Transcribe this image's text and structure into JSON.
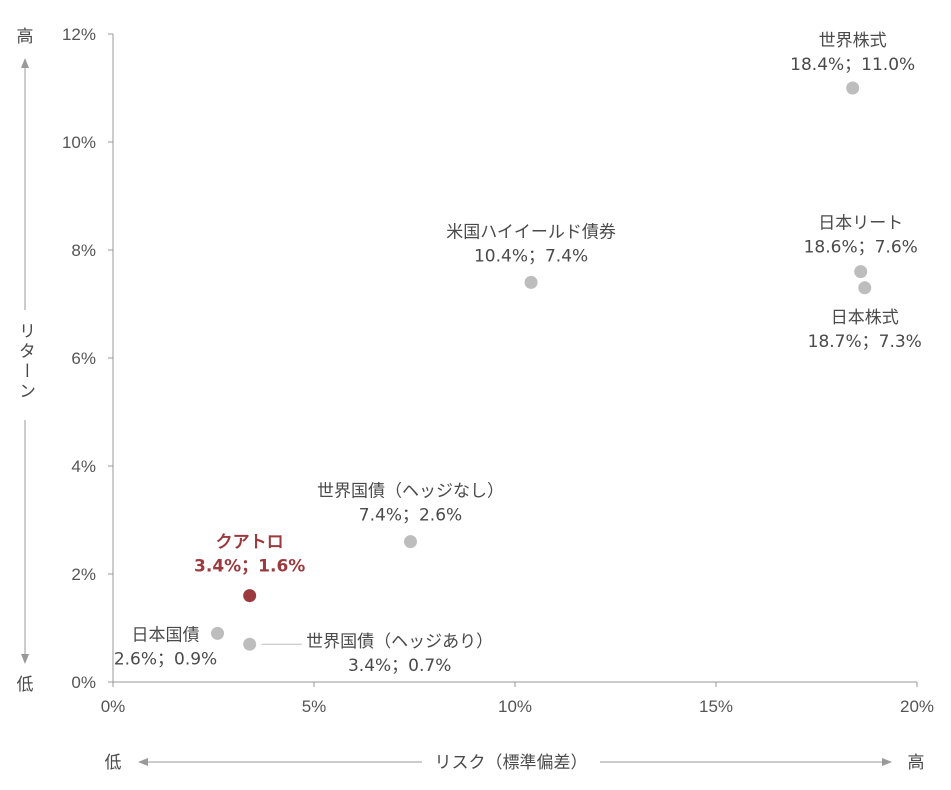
{
  "chart_data": {
    "type": "scatter",
    "xlabel": "リスク（標準偏差）",
    "ylabel": "リターン",
    "x_low": "低",
    "x_high": "高",
    "y_low": "低",
    "y_high": "高",
    "xlim": [
      0,
      20
    ],
    "ylim": [
      0,
      12
    ],
    "x_ticks": [
      {
        "v": 0,
        "label": "0%"
      },
      {
        "v": 5,
        "label": "5%"
      },
      {
        "v": 10,
        "label": "10%"
      },
      {
        "v": 15,
        "label": "15%"
      },
      {
        "v": 20,
        "label": "20%"
      }
    ],
    "y_ticks": [
      {
        "v": 0,
        "label": "0%"
      },
      {
        "v": 2,
        "label": "2%"
      },
      {
        "v": 4,
        "label": "4%"
      },
      {
        "v": 6,
        "label": "6%"
      },
      {
        "v": 8,
        "label": "8%"
      },
      {
        "v": 10,
        "label": "10%"
      },
      {
        "v": 12,
        "label": "12%"
      }
    ],
    "points": [
      {
        "id": "world-equity",
        "name": "世界株式",
        "value_label": "18.4%；11.0%",
        "x": 18.4,
        "y": 11.0,
        "highlight": false
      },
      {
        "id": "us-high-yield",
        "name": "米国ハイイールド債券",
        "value_label": "10.4%；7.4%",
        "x": 10.4,
        "y": 7.4,
        "highlight": false
      },
      {
        "id": "japan-reit",
        "name": "日本リート",
        "value_label": "18.6%；7.6%",
        "x": 18.6,
        "y": 7.6,
        "highlight": false
      },
      {
        "id": "japan-equity",
        "name": "日本株式",
        "value_label": "18.7%；7.3%",
        "x": 18.7,
        "y": 7.3,
        "highlight": false
      },
      {
        "id": "world-bond-unhedged",
        "name": "世界国債（ヘッジなし）",
        "value_label": "7.4%；2.6%",
        "x": 7.4,
        "y": 2.6,
        "highlight": false
      },
      {
        "id": "quattro",
        "name": "クアトロ",
        "value_label": "3.4%；1.6%",
        "x": 3.4,
        "y": 1.6,
        "highlight": true
      },
      {
        "id": "japan-bond",
        "name": "日本国債",
        "value_label": "2.6%；0.9%",
        "x": 2.6,
        "y": 0.9,
        "highlight": false
      },
      {
        "id": "world-bond-hedged",
        "name": "世界国債（ヘッジあり）",
        "value_label": "3.4%；0.7%",
        "x": 3.4,
        "y": 0.7,
        "highlight": false
      }
    ],
    "colors": {
      "point": "#bdbdbd",
      "highlight": "#9b3a3e",
      "axis": "#999999"
    },
    "grid": false
  }
}
